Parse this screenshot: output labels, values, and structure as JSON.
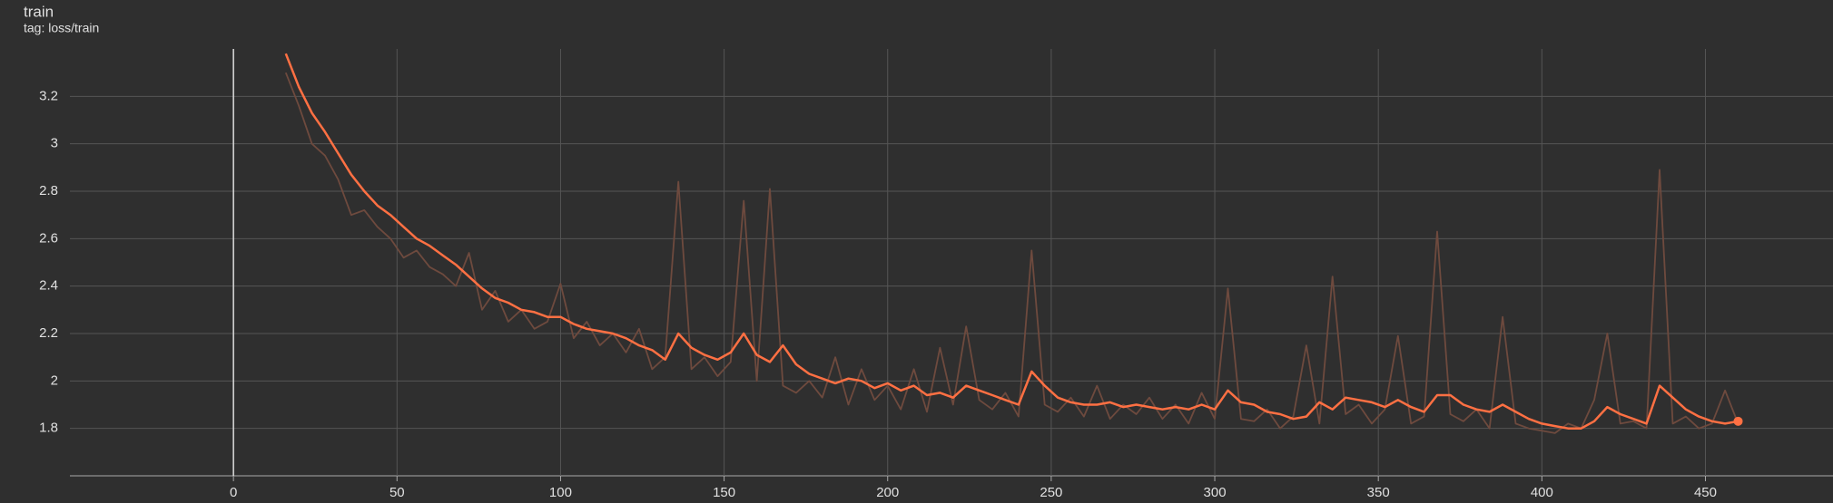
{
  "chart_data": {
    "type": "line",
    "title": "train",
    "subtitle": "tag: loss/train",
    "x": [
      16,
      20,
      24,
      28,
      32,
      36,
      40,
      44,
      48,
      52,
      56,
      60,
      64,
      68,
      72,
      76,
      80,
      84,
      88,
      92,
      96,
      100,
      104,
      108,
      112,
      116,
      120,
      124,
      128,
      132,
      136,
      140,
      144,
      148,
      152,
      156,
      160,
      164,
      168,
      172,
      176,
      180,
      184,
      188,
      192,
      196,
      200,
      204,
      208,
      212,
      216,
      220,
      224,
      228,
      232,
      236,
      240,
      244,
      248,
      252,
      256,
      260,
      264,
      268,
      272,
      276,
      280,
      284,
      288,
      292,
      296,
      300,
      304,
      308,
      312,
      316,
      320,
      324,
      328,
      332,
      336,
      340,
      344,
      348,
      352,
      356,
      360,
      364,
      368,
      372,
      376,
      380,
      384,
      388,
      392,
      396,
      400,
      404,
      408,
      412,
      416,
      420,
      424,
      428,
      432,
      436,
      440,
      444,
      448,
      452,
      456,
      460
    ],
    "series": [
      {
        "color": "#6e4a3e",
        "values": [
          3.3,
          3.16,
          3.0,
          2.95,
          2.85,
          2.7,
          2.72,
          2.65,
          2.6,
          2.52,
          2.55,
          2.48,
          2.45,
          2.4,
          2.54,
          2.3,
          2.38,
          2.25,
          2.3,
          2.22,
          2.25,
          2.41,
          2.18,
          2.25,
          2.15,
          2.2,
          2.12,
          2.22,
          2.05,
          2.1,
          2.84,
          2.05,
          2.1,
          2.02,
          2.08,
          2.76,
          2.0,
          2.81,
          1.98,
          1.95,
          2.0,
          1.93,
          2.1,
          1.9,
          2.05,
          1.92,
          1.98,
          1.88,
          2.05,
          1.87,
          2.14,
          1.9,
          2.23,
          1.92,
          1.88,
          1.95,
          1.85,
          2.55,
          1.9,
          1.87,
          1.93,
          1.85,
          1.98,
          1.84,
          1.9,
          1.86,
          1.93,
          1.84,
          1.9,
          1.82,
          1.95,
          1.84,
          2.39,
          1.84,
          1.83,
          1.88,
          1.8,
          1.85,
          2.15,
          1.82,
          2.44,
          1.86,
          1.9,
          1.82,
          1.88,
          2.19,
          1.82,
          1.85,
          2.63,
          1.86,
          1.83,
          1.88,
          1.8,
          2.27,
          1.82,
          1.8,
          1.79,
          1.78,
          1.82,
          1.8,
          1.92,
          2.2,
          1.82,
          1.83,
          1.8,
          2.89,
          1.82,
          1.85,
          1.8,
          1.82,
          1.96,
          1.82
        ]
      },
      {
        "color": "#ff7043",
        "values": [
          3.38,
          3.24,
          3.13,
          3.05,
          2.96,
          2.87,
          2.8,
          2.74,
          2.7,
          2.65,
          2.6,
          2.57,
          2.53,
          2.49,
          2.44,
          2.39,
          2.35,
          2.33,
          2.3,
          2.29,
          2.27,
          2.27,
          2.24,
          2.22,
          2.21,
          2.2,
          2.18,
          2.15,
          2.13,
          2.09,
          2.2,
          2.14,
          2.11,
          2.09,
          2.12,
          2.2,
          2.11,
          2.08,
          2.15,
          2.07,
          2.03,
          2.01,
          1.99,
          2.01,
          2.0,
          1.97,
          1.99,
          1.96,
          1.98,
          1.94,
          1.95,
          1.93,
          1.98,
          1.96,
          1.94,
          1.92,
          1.9,
          2.04,
          1.98,
          1.93,
          1.91,
          1.9,
          1.9,
          1.91,
          1.89,
          1.9,
          1.89,
          1.88,
          1.89,
          1.88,
          1.9,
          1.88,
          1.96,
          1.91,
          1.9,
          1.87,
          1.86,
          1.84,
          1.85,
          1.91,
          1.88,
          1.93,
          1.92,
          1.91,
          1.89,
          1.92,
          1.89,
          1.87,
          1.94,
          1.94,
          1.9,
          1.88,
          1.87,
          1.9,
          1.87,
          1.84,
          1.82,
          1.81,
          1.8,
          1.8,
          1.83,
          1.89,
          1.86,
          1.84,
          1.82,
          1.98,
          1.93,
          1.88,
          1.85,
          1.83,
          1.82,
          1.83
        ]
      }
    ],
    "xlim": [
      -50,
      489
    ],
    "ylim": [
      1.6,
      3.4
    ],
    "xticks": [
      0,
      50,
      100,
      150,
      200,
      250,
      300,
      350,
      400,
      450
    ],
    "yticks": [
      1.8,
      2,
      2.2,
      2.4,
      2.6,
      2.8,
      3,
      3.2
    ],
    "grid": true
  }
}
